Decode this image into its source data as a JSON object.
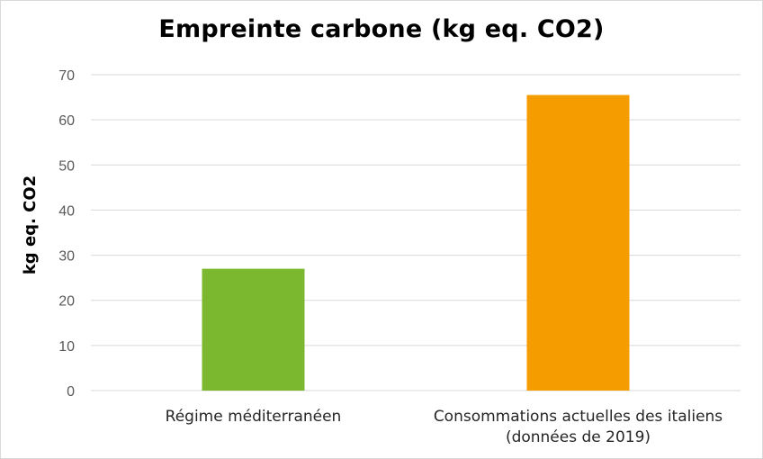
{
  "chart_data": {
    "type": "bar",
    "title": "Empreinte carbone (kg eq. CO2)",
    "xlabel": "",
    "ylabel": "kg eq. CO2",
    "ylim": [
      0,
      70
    ],
    "yticks": [
      0,
      10,
      20,
      30,
      40,
      50,
      60,
      70
    ],
    "grid": true,
    "legend": "none",
    "categories": [
      [
        "Régime méditerranéen"
      ],
      [
        "Consommations actuelles des italiens",
        "(données de 2019)"
      ]
    ],
    "values": [
      27,
      65.5
    ],
    "colors": [
      "#7cb82f",
      "#f59c00"
    ],
    "grid_color": "#d9d9d9"
  }
}
